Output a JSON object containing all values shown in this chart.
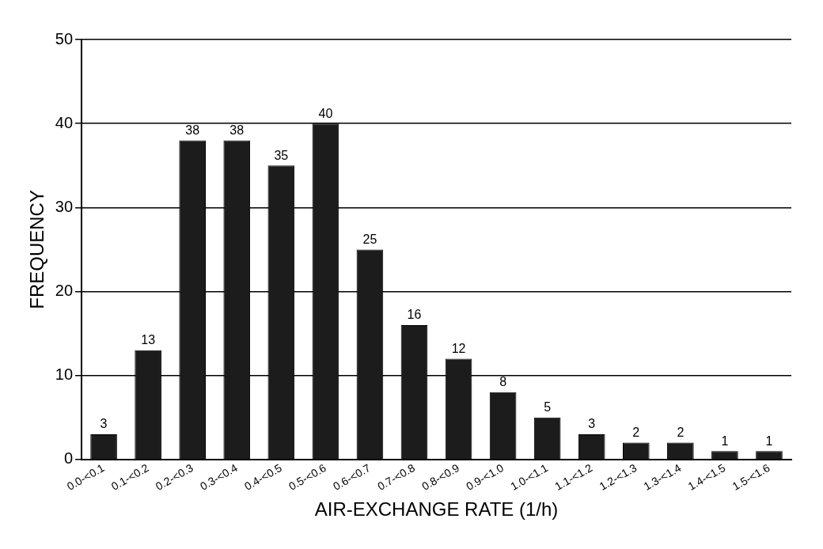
{
  "chart_data": {
    "type": "bar",
    "xlabel": "AIR-EXCHANGE RATE (1/h)",
    "ylabel": "FREQUENCY",
    "categories": [
      "0.0-<0.1",
      "0.1-<0.2",
      "0.2-<0.3",
      "0.3-<0.4",
      "0.4-<0.5",
      "0.5-<0.6",
      "0.6-<0.7",
      "0.7-<0.8",
      "0.8-<0.9",
      "0.9-<1.0",
      "1.0-<1.1",
      "1.1-<1.2",
      "1.2-<1.3",
      "1.3-<1.4",
      "1.4-<1.5",
      "1.5-<1.6"
    ],
    "values": [
      3,
      13,
      38,
      38,
      35,
      40,
      25,
      16,
      12,
      8,
      5,
      3,
      2,
      2,
      1,
      1
    ],
    "color": "#1c1c1c",
    "ylim": [
      0,
      50
    ],
    "yticks": [
      0,
      10,
      20,
      30,
      40,
      50
    ],
    "grid": "y",
    "data_labels": true,
    "legend": false
  }
}
